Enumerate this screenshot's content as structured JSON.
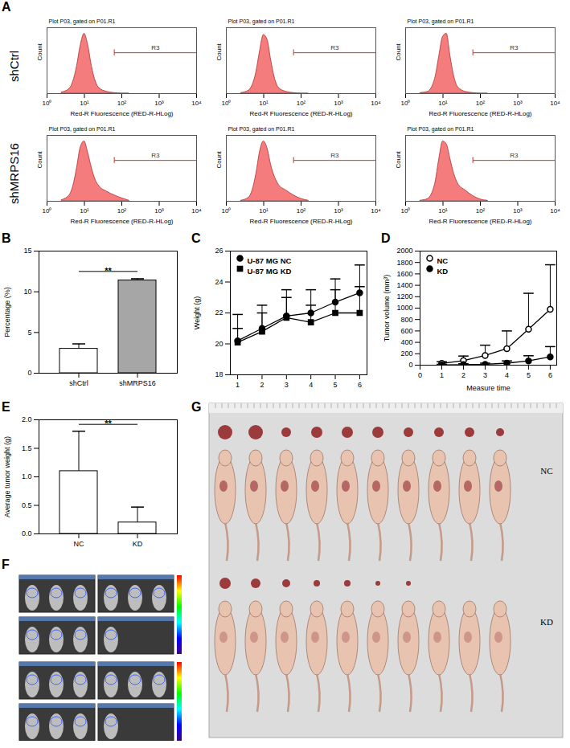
{
  "chart_data": [
    {
      "panel": "A",
      "type": "area",
      "row_label": "shCtrl",
      "title": "Plot P03, gated on P01.R1",
      "x_label": "Red-R Fluorescence (RED-R-HLog)",
      "y_label": "Count",
      "log": "x",
      "tick_labels": "x",
      "color": "#f47c7c",
      "x": [
        2.5,
        4,
        5,
        6.3,
        7.9,
        10,
        12.6,
        15.8,
        20,
        25,
        40,
        63,
        100,
        158
      ],
      "values": [
        2,
        8,
        20,
        45,
        80,
        100,
        80,
        45,
        20,
        9,
        3,
        1,
        0,
        0
      ],
      "xlim": [
        1,
        10000
      ],
      "xticks": [
        {
          "value": 1,
          "label": "10⁰"
        },
        {
          "value": 10,
          "label": "10¹"
        },
        {
          "value": 100,
          "label": "10²"
        },
        {
          "value": 1000,
          "label": "10³"
        },
        {
          "value": 10000,
          "label": "10⁴"
        }
      ],
      "ylim": [
        0,
        110
      ],
      "gate": [
        63,
        10000
      ],
      "gate_label": "R3"
    },
    {
      "panel": "A",
      "type": "area",
      "title": "Plot P03, gated on P01.R1",
      "x_label": "Red-R Fluorescence (RED-R-HLog)",
      "y_label": "Count",
      "log": "x",
      "tick_labels": "x",
      "color": "#f47c7c",
      "x": [
        2.5,
        4,
        5,
        6.3,
        7.9,
        10,
        12.6,
        15.8,
        20,
        25,
        40,
        63,
        100,
        158
      ],
      "values": [
        1,
        5,
        14,
        35,
        70,
        98,
        90,
        55,
        25,
        10,
        3,
        1,
        0,
        0
      ],
      "xlim": [
        1,
        10000
      ],
      "xticks": [
        {
          "value": 1,
          "label": "10⁰"
        },
        {
          "value": 10,
          "label": "10¹"
        },
        {
          "value": 100,
          "label": "10²"
        },
        {
          "value": 1000,
          "label": "10³"
        },
        {
          "value": 10000,
          "label": "10⁴"
        }
      ],
      "ylim": [
        0,
        110
      ],
      "gate": [
        63,
        10000
      ],
      "gate_label": "R3"
    },
    {
      "panel": "A",
      "type": "area",
      "title": "Plot P03, gated on P01.R1",
      "x_label": "Red-R Fluorescence (RED-R-HLog)",
      "y_label": "Count",
      "log": "x",
      "tick_labels": "x",
      "color": "#f47c7c",
      "x": [
        2.5,
        4,
        5,
        6.3,
        7.9,
        10,
        12.6,
        15.8,
        20,
        25,
        40,
        63,
        100,
        158
      ],
      "values": [
        1,
        3,
        10,
        28,
        62,
        95,
        100,
        62,
        28,
        11,
        3,
        1,
        0,
        0
      ],
      "xlim": [
        1,
        10000
      ],
      "xticks": [
        {
          "value": 1,
          "label": "10⁰"
        },
        {
          "value": 10,
          "label": "10¹"
        },
        {
          "value": 100,
          "label": "10²"
        },
        {
          "value": 1000,
          "label": "10³"
        },
        {
          "value": 10000,
          "label": "10⁴"
        }
      ],
      "ylim": [
        0,
        110
      ],
      "gate": [
        63,
        10000
      ],
      "gate_label": "R3"
    },
    {
      "panel": "A",
      "type": "area",
      "row_label": "shMRPS16",
      "title": "Plot P03, gated on P01.R1",
      "x_label": "Red-R Fluorescence (RED-R-HLog)",
      "y_label": "Count",
      "log": "x",
      "tick_labels": "x",
      "color": "#f47c7c",
      "x": [
        2.5,
        4,
        5,
        6.3,
        7.9,
        10,
        12.6,
        15.8,
        20,
        25,
        40,
        63,
        100,
        158
      ],
      "values": [
        2,
        10,
        25,
        55,
        90,
        100,
        80,
        55,
        35,
        25,
        16,
        10,
        5,
        1
      ],
      "xlim": [
        1,
        10000
      ],
      "xticks": [
        {
          "value": 1,
          "label": "10⁰"
        },
        {
          "value": 10,
          "label": "10¹"
        },
        {
          "value": 100,
          "label": "10²"
        },
        {
          "value": 1000,
          "label": "10³"
        },
        {
          "value": 10000,
          "label": "10⁴"
        }
      ],
      "ylim": [
        0,
        110
      ],
      "gate": [
        63,
        10000
      ],
      "gate_label": "R3"
    },
    {
      "panel": "A",
      "type": "area",
      "title": "Plot P03, gated on P01.R1",
      "x_label": "Red-R Fluorescence (RED-R-HLog)",
      "y_label": "Count",
      "log": "x",
      "tick_labels": "x",
      "color": "#f47c7c",
      "x": [
        2.5,
        4,
        5,
        6.3,
        7.9,
        10,
        12.6,
        15.8,
        20,
        25,
        40,
        63,
        100,
        158
      ],
      "values": [
        1,
        6,
        18,
        45,
        82,
        100,
        88,
        60,
        40,
        28,
        18,
        10,
        4,
        1
      ],
      "xlim": [
        1,
        10000
      ],
      "xticks": [
        {
          "value": 1,
          "label": "10⁰"
        },
        {
          "value": 10,
          "label": "10¹"
        },
        {
          "value": 100,
          "label": "10²"
        },
        {
          "value": 1000,
          "label": "10³"
        },
        {
          "value": 10000,
          "label": "10⁴"
        }
      ],
      "ylim": [
        0,
        110
      ],
      "gate": [
        63,
        10000
      ],
      "gate_label": "R3"
    },
    {
      "panel": "A",
      "type": "area",
      "title": "Plot P03, gated on P01.R1",
      "x_label": "Red-R Fluorescence (RED-R-HLog)",
      "y_label": "Count",
      "log": "x",
      "tick_labels": "x",
      "color": "#f47c7c",
      "x": [
        2.5,
        4,
        5,
        6.3,
        7.9,
        10,
        12.6,
        15.8,
        20,
        25,
        40,
        63,
        100,
        158
      ],
      "values": [
        1,
        4,
        12,
        32,
        70,
        100,
        95,
        70,
        45,
        30,
        18,
        9,
        3,
        1
      ],
      "xlim": [
        1,
        10000
      ],
      "xticks": [
        {
          "value": 1,
          "label": "10⁰"
        },
        {
          "value": 10,
          "label": "10¹"
        },
        {
          "value": 100,
          "label": "10²"
        },
        {
          "value": 1000,
          "label": "10³"
        },
        {
          "value": 10000,
          "label": "10⁴"
        }
      ],
      "ylim": [
        0,
        110
      ],
      "gate": [
        63,
        10000
      ],
      "gate_label": "R3"
    },
    {
      "panel": "B",
      "type": "bar",
      "categories": [
        "shCtrl",
        "shMRPS16"
      ],
      "values": [
        3.0,
        11.4
      ],
      "errors": [
        0.6,
        0.2
      ],
      "colors": [
        "#ffffff",
        "#a6a6a6"
      ],
      "y_label": "Percentage (%)",
      "ylim": [
        0,
        15
      ],
      "yticks": [
        0,
        5,
        10,
        15
      ],
      "significance": "**"
    },
    {
      "panel": "C",
      "type": "line",
      "x": [
        1,
        2,
        3,
        4,
        5,
        6
      ],
      "xlim": [
        0.7,
        6.3
      ],
      "xticks": [
        1,
        2,
        3,
        4,
        5,
        6
      ],
      "ylim": [
        18,
        26
      ],
      "yticks": [
        18,
        20,
        22,
        24,
        26
      ],
      "y_label": "Weight (g)",
      "legend": "top-left",
      "series": [
        {
          "name": "U-87 MG NC",
          "color": "#000000",
          "marker": "circle",
          "values": [
            20.2,
            21.0,
            21.8,
            22.0,
            22.7,
            23.3
          ],
          "errors": [
            1.7,
            1.5,
            1.7,
            1.5,
            1.5,
            1.8
          ]
        },
        {
          "name": "U-87 MG KD",
          "color": "#000000",
          "marker": "square",
          "values": [
            20.1,
            20.8,
            21.7,
            21.4,
            22.0,
            22.0
          ],
          "errors": [
            0.9,
            1.2,
            1.3,
            1.1,
            1.5,
            1.7
          ]
        }
      ]
    },
    {
      "panel": "D",
      "type": "line",
      "x": [
        1,
        2,
        3,
        4,
        5,
        6
      ],
      "xlim": [
        0,
        6.3
      ],
      "xticks": [
        0,
        1,
        2,
        3,
        4,
        5,
        6
      ],
      "ylim": [
        0,
        2000
      ],
      "yticks": [
        0,
        200,
        400,
        600,
        800,
        1000,
        1200,
        1400,
        1600,
        1800,
        2000
      ],
      "x_label": "Measure time",
      "y_label": "Tumor volume (mm³)",
      "legend": "top-left",
      "series": [
        {
          "name": "NC",
          "color": "#000000",
          "marker": "circle_open",
          "values": [
            30,
            80,
            170,
            290,
            630,
            980
          ],
          "errors": [
            30,
            80,
            180,
            310,
            630,
            780
          ]
        },
        {
          "name": "KD",
          "color": "#000000",
          "marker": "circle",
          "values": [
            5,
            10,
            15,
            35,
            75,
            145
          ],
          "errors": [
            10,
            15,
            20,
            40,
            90,
            180
          ]
        }
      ]
    },
    {
      "panel": "E",
      "type": "bar",
      "categories": [
        "NC",
        "KD"
      ],
      "values": [
        1.1,
        0.2
      ],
      "errors": [
        0.7,
        0.27
      ],
      "colors": [
        "#ffffff",
        "#ffffff"
      ],
      "y_label": "Average tumor weight (g)",
      "ylim": [
        0,
        2
      ],
      "yticks": [
        {
          "value": 0,
          "label": "0.0"
        },
        0.5,
        {
          "value": 1,
          "label": "1.0"
        },
        1.5,
        {
          "value": 2,
          "label": "2.0"
        }
      ],
      "significance": "**"
    },
    {
      "panel": "F",
      "type": "image"
    },
    {
      "panel": "G",
      "type": "image",
      "labels": [
        "NC",
        "KD"
      ]
    }
  ]
}
